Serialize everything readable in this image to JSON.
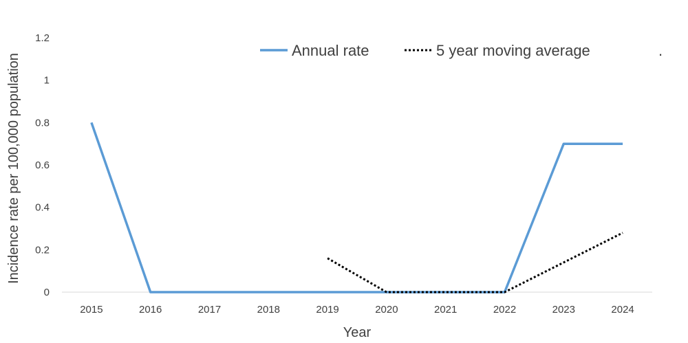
{
  "chart_data": {
    "type": "line",
    "categories": [
      "2015",
      "2016",
      "2017",
      "2018",
      "2019",
      "2020",
      "2021",
      "2022",
      "2023",
      "2024"
    ],
    "series": [
      {
        "name": "Annual rate",
        "values": [
          0.8,
          0,
          0,
          0,
          0,
          0,
          0,
          0,
          0.7,
          0.7
        ],
        "color": "#5b9bd5",
        "style": "solid"
      },
      {
        "name": "5 year moving average",
        "values": [
          null,
          null,
          null,
          null,
          0.16,
          0,
          0,
          0,
          0.14,
          0.28
        ],
        "color": "#000000",
        "style": "dotted"
      }
    ],
    "xlabel": "Year",
    "ylabel": "Incidence rate per 100,000 population",
    "ylim": [
      0,
      1.2
    ],
    "yticks": [
      "0",
      "0.2",
      "0.4",
      "0.6",
      "0.8",
      "1",
      "1.2"
    ],
    "grid": false,
    "legend_position": "top-right",
    "legend_trailing_mark": "."
  }
}
